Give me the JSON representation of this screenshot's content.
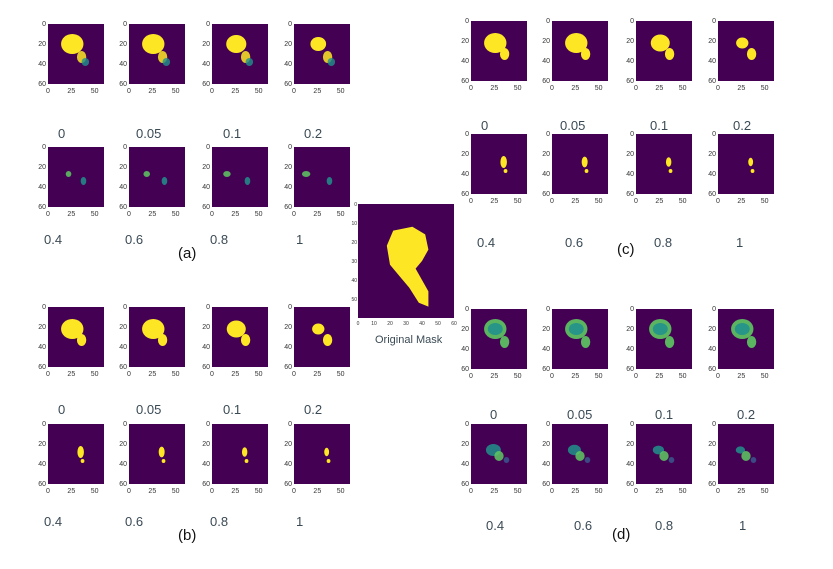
{
  "colors": {
    "background": "#440154",
    "blob_yellow": "#fde725",
    "blob_green": "#5ec962",
    "blob_teal": "#21918c",
    "blob_blue": "#3b528b"
  },
  "thumb_axes": {
    "x_ticks": [
      "0",
      "25",
      "50"
    ],
    "y_ticks": [
      "0",
      "20",
      "40",
      "60"
    ]
  },
  "original_mask": {
    "caption": "Original Mask",
    "x_ticks": [
      "0",
      "10",
      "20",
      "30",
      "40",
      "50",
      "60"
    ],
    "y_ticks": [
      "0",
      "10",
      "20",
      "30",
      "40",
      "50"
    ]
  },
  "panels": [
    {
      "label": "(a)",
      "style": "soft",
      "top_captions": [
        "0",
        "0.05",
        "0.1",
        "0.2"
      ],
      "bottom_captions": [
        "0.4",
        "0.6",
        "0.8",
        "1"
      ]
    },
    {
      "label": "(b)",
      "style": "sharp",
      "top_captions": [
        "0",
        "0.05",
        "0.1",
        "0.2"
      ],
      "bottom_captions": [
        "0.4",
        "0.6",
        "0.8",
        "1"
      ]
    },
    {
      "label": "(c)",
      "style": "sharp",
      "top_captions": [
        "0",
        "0.05",
        "0.1",
        "0.2"
      ],
      "bottom_captions": [
        "0.4",
        "0.6",
        "0.8",
        "1"
      ]
    },
    {
      "label": "(d)",
      "style": "edge",
      "top_captions": [
        "0",
        "0.05",
        "0.1",
        "0.2"
      ],
      "bottom_captions": [
        "0.4",
        "0.6",
        "0.8",
        "1"
      ]
    }
  ]
}
